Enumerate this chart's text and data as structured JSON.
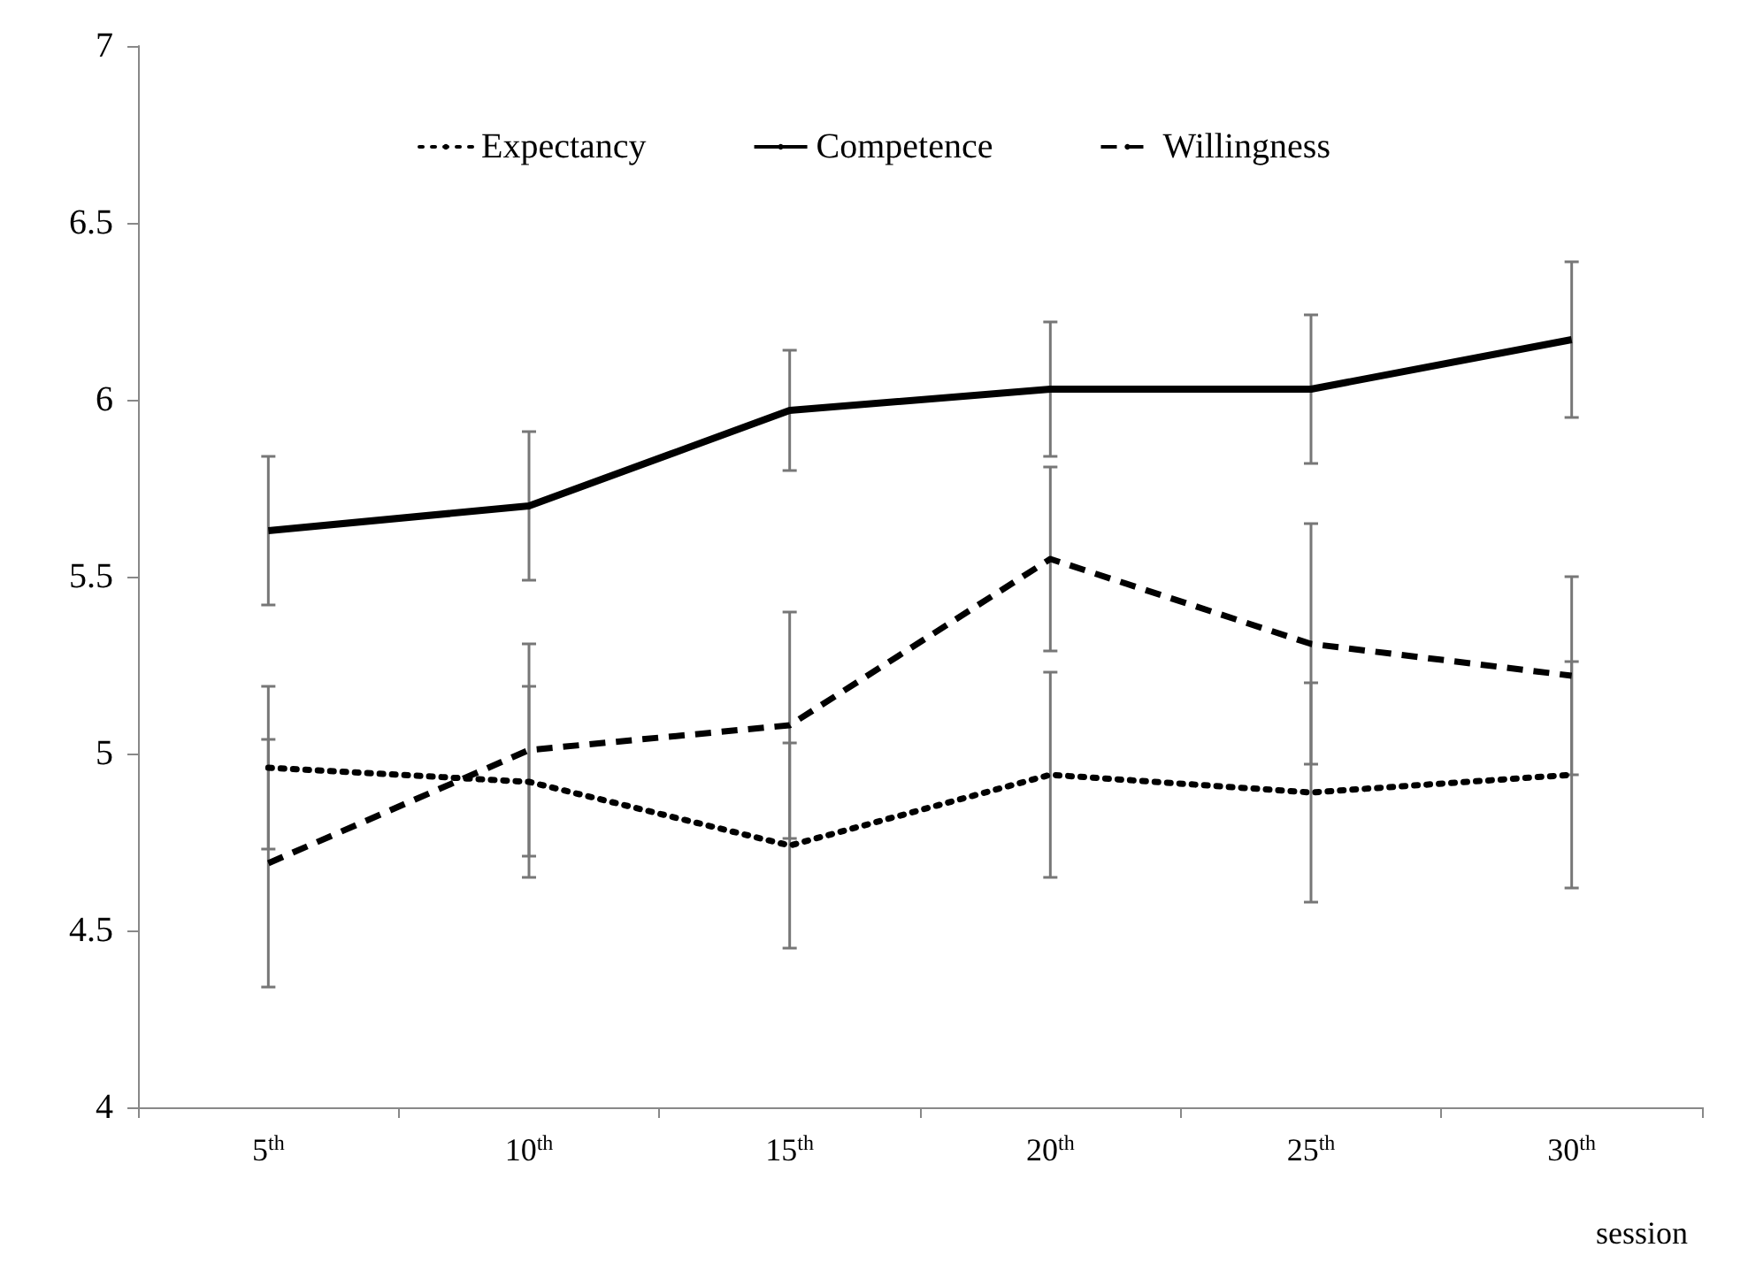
{
  "chart_data": {
    "type": "line",
    "xlabel": "session",
    "categories": [
      "5$^{th}$",
      "10$^{th}$",
      "15$^{th}$",
      "20$^{th}$",
      "25$^{th}$",
      "30$^{th}$"
    ],
    "series": [
      {
        "name": "Expectancy",
        "color": "#000000",
        "line_style": "dotted",
        "values": [
          4.96,
          4.92,
          4.74,
          4.94,
          4.89,
          4.94
        ],
        "errors": [
          0.23,
          0.27,
          0.29,
          0.29,
          0.31,
          0.32
        ]
      },
      {
        "name": "Competence",
        "color": "#000000",
        "line_style": "solid",
        "values": [
          5.63,
          5.7,
          5.97,
          6.03,
          6.03,
          6.17
        ],
        "errors": [
          0.21,
          0.21,
          0.17,
          0.19,
          0.21,
          0.22
        ]
      },
      {
        "name": "Willingness",
        "color": "#000000",
        "line_style": "dashed",
        "values": [
          4.69,
          5.01,
          5.08,
          5.55,
          5.31,
          5.22
        ],
        "errors": [
          0.35,
          0.3,
          0.32,
          0.26,
          0.34,
          0.28
        ]
      }
    ],
    "ylim": [
      4,
      7
    ],
    "yticks": [
      4,
      4.5,
      5,
      5.5,
      6,
      6.5,
      7
    ],
    "grid": false,
    "legend": "top",
    "marker": "none"
  }
}
